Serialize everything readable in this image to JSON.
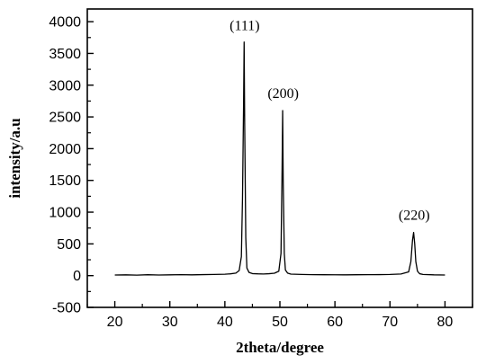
{
  "chart_data": {
    "type": "line",
    "title": "",
    "xlabel": "2theta/degree",
    "ylabel": "intensity/a.u",
    "xlim": [
      15,
      85
    ],
    "ylim": [
      -500,
      4200
    ],
    "xticks": [
      20,
      30,
      40,
      50,
      60,
      70,
      80
    ],
    "yticks": [
      -500,
      0,
      500,
      1000,
      1500,
      2000,
      2500,
      3000,
      3500,
      4000
    ],
    "grid": false,
    "legend": "none",
    "line_color": "#000000",
    "series": [
      {
        "x": [
          20,
          22,
          24,
          26,
          28,
          30,
          32,
          34,
          36,
          38,
          40,
          41,
          42,
          42.6,
          43.0,
          43.2,
          43.4,
          43.5,
          43.6,
          43.8,
          44.0,
          44.4,
          45,
          46,
          47,
          48,
          49,
          49.8,
          50.2,
          50.4,
          50.5,
          50.6,
          50.8,
          51.0,
          51.4,
          52,
          54,
          56,
          58,
          60,
          62,
          64,
          66,
          68,
          70,
          72,
          73.4,
          73.8,
          74.1,
          74.3,
          74.5,
          74.7,
          75.0,
          75.4,
          76,
          78,
          80
        ],
        "y": [
          10,
          12,
          8,
          14,
          10,
          12,
          15,
          12,
          16,
          18,
          22,
          28,
          40,
          80,
          300,
          1200,
          2700,
          3680,
          2400,
          600,
          120,
          50,
          32,
          28,
          26,
          30,
          38,
          70,
          350,
          1700,
          2600,
          1500,
          350,
          90,
          40,
          24,
          18,
          15,
          14,
          13,
          12,
          14,
          15,
          16,
          18,
          25,
          60,
          220,
          560,
          680,
          500,
          220,
          70,
          30,
          18,
          12,
          10
        ]
      }
    ],
    "annotations": [
      {
        "text": "(111)",
        "x": 43.6,
        "y": 3870
      },
      {
        "text": "(200)",
        "x": 50.6,
        "y": 2800
      },
      {
        "text": "(220)",
        "x": 74.4,
        "y": 880
      }
    ]
  }
}
